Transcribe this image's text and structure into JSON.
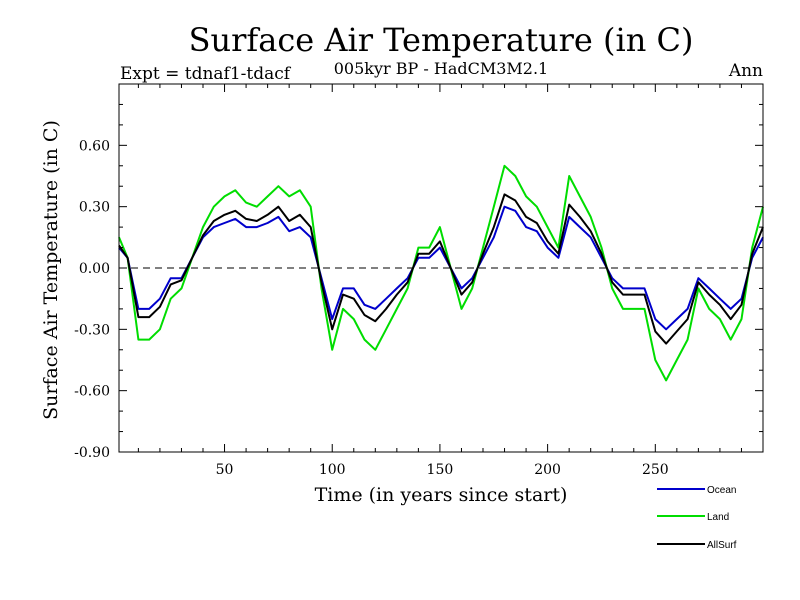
{
  "chart_data": {
    "type": "line",
    "title": "Surface Air Temperature (in C)",
    "subtitle": "005kyr BP - HadCM3M2.1",
    "experiment": "Expt = tdnaf1-tdacf",
    "period": "Ann",
    "xlabel": "Time (in years since start)",
    "ylabel": "Surface Air Temperature (in C)",
    "xlim": [
      1,
      300
    ],
    "ylim": [
      -0.9,
      0.9
    ],
    "xticks": [
      50,
      100,
      150,
      200,
      250
    ],
    "yticks": [
      -0.9,
      -0.6,
      -0.3,
      0.0,
      0.3,
      0.6
    ],
    "ytick_labels": [
      "-0.90",
      "-0.60",
      "-0.30",
      "0.00",
      "0.30",
      "0.60"
    ],
    "zero_line": "dashed",
    "grid": false,
    "legend": "bottom-right",
    "series": [
      {
        "name": "Ocean",
        "color": "#0000cc",
        "x": [
          1,
          5,
          10,
          15,
          20,
          25,
          30,
          35,
          40,
          45,
          50,
          55,
          60,
          65,
          70,
          75,
          80,
          85,
          90,
          95,
          100,
          105,
          110,
          115,
          120,
          125,
          130,
          135,
          140,
          145,
          150,
          155,
          160,
          165,
          170,
          175,
          180,
          185,
          190,
          195,
          200,
          205,
          210,
          215,
          220,
          225,
          230,
          235,
          240,
          245,
          250,
          255,
          260,
          265,
          270,
          275,
          280,
          285,
          290,
          295,
          300
        ],
        "values": [
          0.1,
          0.05,
          -0.2,
          -0.2,
          -0.15,
          -0.05,
          -0.05,
          0.05,
          0.15,
          0.2,
          0.22,
          0.24,
          0.2,
          0.2,
          0.22,
          0.25,
          0.18,
          0.2,
          0.15,
          -0.05,
          -0.25,
          -0.1,
          -0.1,
          -0.18,
          -0.2,
          -0.15,
          -0.1,
          -0.05,
          0.05,
          0.05,
          0.1,
          0.0,
          -0.1,
          -0.05,
          0.05,
          0.15,
          0.3,
          0.28,
          0.2,
          0.18,
          0.1,
          0.05,
          0.25,
          0.2,
          0.15,
          0.05,
          -0.05,
          -0.1,
          -0.1,
          -0.1,
          -0.25,
          -0.3,
          -0.25,
          -0.2,
          -0.05,
          -0.1,
          -0.15,
          -0.2,
          -0.15,
          0.05,
          0.15
        ]
      },
      {
        "name": "Land",
        "color": "#00dd00",
        "x": [
          1,
          5,
          10,
          15,
          20,
          25,
          30,
          35,
          40,
          45,
          50,
          55,
          60,
          65,
          70,
          75,
          80,
          85,
          90,
          95,
          100,
          105,
          110,
          115,
          120,
          125,
          130,
          135,
          140,
          145,
          150,
          155,
          160,
          165,
          170,
          175,
          180,
          185,
          190,
          195,
          200,
          205,
          210,
          215,
          220,
          225,
          230,
          235,
          240,
          245,
          250,
          255,
          260,
          265,
          270,
          275,
          280,
          285,
          290,
          295,
          300
        ],
        "values": [
          0.15,
          0.05,
          -0.35,
          -0.35,
          -0.3,
          -0.15,
          -0.1,
          0.05,
          0.2,
          0.3,
          0.35,
          0.38,
          0.32,
          0.3,
          0.35,
          0.4,
          0.35,
          0.38,
          0.3,
          -0.1,
          -0.4,
          -0.2,
          -0.25,
          -0.35,
          -0.4,
          -0.3,
          -0.2,
          -0.1,
          0.1,
          0.1,
          0.2,
          0.0,
          -0.2,
          -0.1,
          0.1,
          0.3,
          0.5,
          0.45,
          0.35,
          0.3,
          0.2,
          0.1,
          0.45,
          0.35,
          0.25,
          0.1,
          -0.1,
          -0.2,
          -0.2,
          -0.2,
          -0.45,
          -0.55,
          -0.45,
          -0.35,
          -0.1,
          -0.2,
          -0.25,
          -0.35,
          -0.25,
          0.1,
          0.3
        ]
      },
      {
        "name": "AllSurf",
        "color": "#000000",
        "x": [
          1,
          5,
          10,
          15,
          20,
          25,
          30,
          35,
          40,
          45,
          50,
          55,
          60,
          65,
          70,
          75,
          80,
          85,
          90,
          95,
          100,
          105,
          110,
          115,
          120,
          125,
          130,
          135,
          140,
          145,
          150,
          155,
          160,
          165,
          170,
          175,
          180,
          185,
          190,
          195,
          200,
          205,
          210,
          215,
          220,
          225,
          230,
          235,
          240,
          245,
          250,
          255,
          260,
          265,
          270,
          275,
          280,
          285,
          290,
          295,
          300
        ],
        "values": [
          0.11,
          0.05,
          -0.24,
          -0.24,
          -0.19,
          -0.08,
          -0.06,
          0.05,
          0.16,
          0.23,
          0.26,
          0.28,
          0.24,
          0.23,
          0.26,
          0.3,
          0.23,
          0.26,
          0.2,
          -0.07,
          -0.3,
          -0.13,
          -0.15,
          -0.23,
          -0.26,
          -0.2,
          -0.13,
          -0.07,
          0.07,
          0.07,
          0.13,
          0.0,
          -0.13,
          -0.07,
          0.07,
          0.2,
          0.36,
          0.33,
          0.25,
          0.22,
          0.13,
          0.07,
          0.31,
          0.25,
          0.18,
          0.07,
          -0.07,
          -0.13,
          -0.13,
          -0.13,
          -0.31,
          -0.37,
          -0.31,
          -0.25,
          -0.07,
          -0.13,
          -0.18,
          -0.25,
          -0.18,
          0.07,
          0.2
        ]
      }
    ]
  }
}
